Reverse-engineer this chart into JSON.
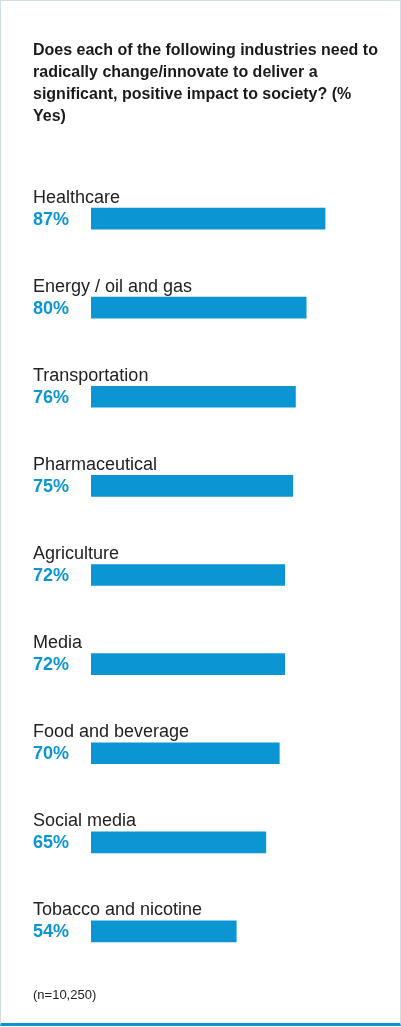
{
  "chart_data": {
    "type": "bar",
    "orientation": "horizontal",
    "title": "Does each of the following industries need to radically change/innovate to deliver a significant, positive impact to society? (% Yes)",
    "categories": [
      "Healthcare",
      "Energy / oil and gas",
      "Transportation",
      "Pharmaceutical",
      "Agriculture",
      "Media",
      "Food and beverage",
      "Social media",
      "Tobacco and nicotine"
    ],
    "values": [
      87,
      80,
      76,
      75,
      72,
      72,
      70,
      65,
      54
    ],
    "value_labels": [
      "87%",
      "80%",
      "76%",
      "75%",
      "72%",
      "72%",
      "70%",
      "65%",
      "54%"
    ],
    "color": "#0b95d3",
    "tick_labels": false,
    "legend": false,
    "annotations": [
      "(n=10,250)"
    ]
  }
}
